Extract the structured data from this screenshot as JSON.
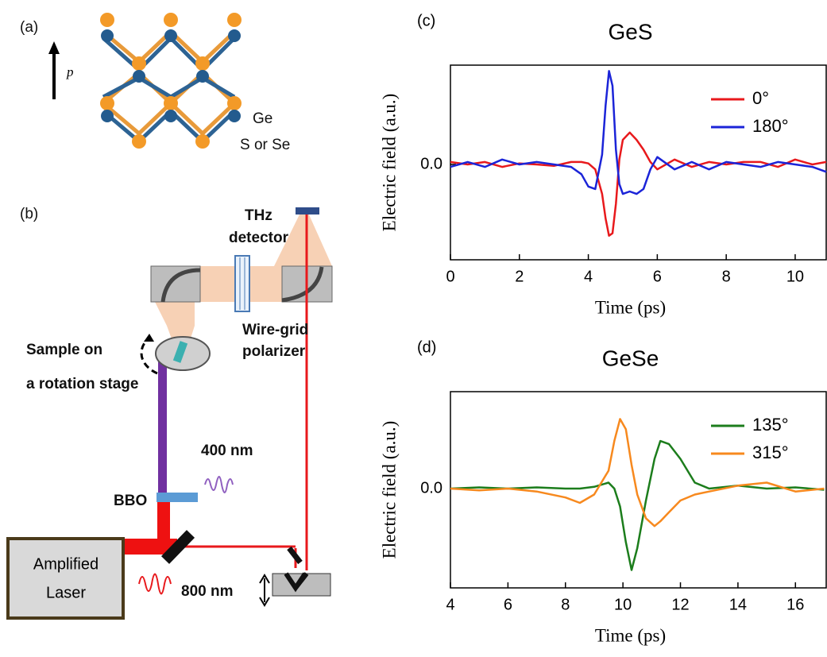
{
  "diagram": {
    "panel_a": "(a)",
    "vector": "p",
    "atom_1": "Ge",
    "atom_2": "S or Se",
    "panel_b": "(b)",
    "detector": [
      "THz",
      "detector"
    ],
    "polarizer": [
      "Wire-grid",
      "polarizer"
    ],
    "sample": [
      "Sample on",
      "a rotation stage"
    ],
    "wavelength_400": "400 nm",
    "crystal": "BBO",
    "laser": [
      "Amplified",
      "Laser"
    ],
    "wavelength_800": "800 nm"
  },
  "chart_data": [
    {
      "type": "line",
      "panel_label": "(c)",
      "title": "GeS",
      "xlabel": "Time (ps)",
      "ylabel": "Electric field (a.u.)",
      "x": [
        0,
        0.5,
        1,
        1.5,
        2,
        2.5,
        3,
        3.5,
        3.8,
        4.0,
        4.2,
        4.4,
        4.5,
        4.6,
        4.7,
        4.8,
        4.9,
        5.0,
        5.2,
        5.4,
        5.6,
        5.8,
        6.0,
        6.5,
        7,
        7.5,
        8,
        8.5,
        9,
        9.5,
        10,
        10.5,
        10.9
      ],
      "series": [
        {
          "name": "0°",
          "color": "#e8191c",
          "values": [
            0.05,
            0,
            0.05,
            -0.05,
            0.02,
            0,
            -0.03,
            0.05,
            0.05,
            0.02,
            -0.1,
            -0.6,
            -1.1,
            -1.45,
            -1.4,
            -0.8,
            0.1,
            0.5,
            0.65,
            0.5,
            0.3,
            0.05,
            -0.1,
            0.1,
            -0.05,
            0.05,
            0,
            0.05,
            0.05,
            -0.05,
            0.1,
            0,
            0.05
          ]
        },
        {
          "name": "180°",
          "color": "#1b24d8",
          "values": [
            -0.05,
            0.05,
            -0.05,
            0.1,
            0,
            0.05,
            0,
            -0.05,
            -0.2,
            -0.45,
            -0.5,
            0.2,
            1.2,
            1.9,
            1.6,
            0.3,
            -0.4,
            -0.6,
            -0.55,
            -0.6,
            -0.5,
            -0.1,
            0.15,
            -0.1,
            0.05,
            -0.1,
            0.05,
            0,
            -0.05,
            0.05,
            0,
            -0.05,
            -0.15
          ]
        }
      ],
      "xlim": [
        0,
        10.9
      ],
      "ylim": [
        -1.94,
        2.02
      ],
      "xticks": [
        0,
        2,
        4,
        6,
        8,
        10
      ],
      "yticks": [
        {
          "value": 0,
          "label": "0.0"
        }
      ],
      "legend": "upper right"
    },
    {
      "type": "line",
      "panel_label": "(d)",
      "title": "GeSe",
      "xlabel": "Time (ps)",
      "ylabel": "Electric field (a.u.)",
      "x": [
        4,
        5,
        6,
        7,
        8,
        8.5,
        9,
        9.5,
        9.7,
        9.9,
        10.1,
        10.3,
        10.5,
        10.8,
        11.1,
        11.3,
        11.6,
        12,
        12.5,
        13,
        14,
        15,
        16,
        17
      ],
      "series": [
        {
          "name": "135°",
          "color": "#1c7d1c",
          "values": [
            0,
            0.02,
            0,
            0.02,
            0,
            0,
            0.03,
            0.1,
            0,
            -0.3,
            -0.9,
            -1.37,
            -1.0,
            -0.2,
            0.5,
            0.8,
            0.75,
            0.5,
            0.1,
            0,
            0.05,
            0,
            0.02,
            -0.02
          ]
        },
        {
          "name": "315°",
          "color": "#f7891e",
          "values": [
            0,
            -0.03,
            0,
            -0.05,
            -0.15,
            -0.24,
            -0.1,
            0.3,
            0.8,
            1.17,
            1.0,
            0.4,
            -0.1,
            -0.5,
            -0.63,
            -0.55,
            -0.4,
            -0.2,
            -0.1,
            -0.05,
            0.05,
            0.1,
            -0.05,
            0
          ]
        }
      ],
      "xlim": [
        4,
        17.07
      ],
      "ylim": [
        -1.67,
        1.63
      ],
      "xticks": [
        4,
        6,
        8,
        10,
        12,
        14,
        16
      ],
      "yticks": [
        {
          "value": 0,
          "label": "0.0"
        }
      ],
      "legend": "upper right"
    }
  ]
}
